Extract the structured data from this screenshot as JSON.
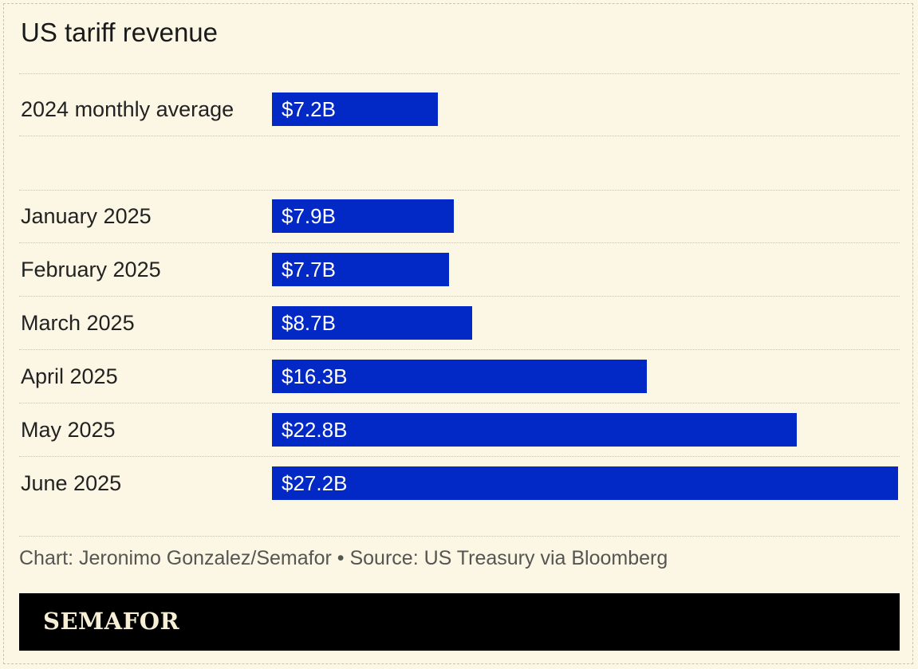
{
  "title": "US tariff revenue",
  "footnote": "Chart: Jeronimo Gonzalez/Semafor • Source: US Treasury via Bloomberg",
  "brand": "SEMAFOR",
  "colors": {
    "bar": "#0228c6",
    "background": "#fbf7e4",
    "brand_bar": "#000000"
  },
  "chart_data": {
    "type": "bar",
    "orientation": "horizontal",
    "unit": "USD billions",
    "categories": [
      "2024 monthly average",
      "January 2025",
      "February 2025",
      "March 2025",
      "April 2025",
      "May 2025",
      "June 2025"
    ],
    "values": [
      7.2,
      7.9,
      7.7,
      8.7,
      16.3,
      22.8,
      27.2
    ],
    "value_labels": [
      "$7.2B",
      "$7.9B",
      "$7.7B",
      "$8.7B",
      "$16.3B",
      "$22.8B",
      "$27.2B"
    ],
    "xlim": [
      0,
      27.2
    ],
    "grid": false,
    "legend": "none"
  }
}
